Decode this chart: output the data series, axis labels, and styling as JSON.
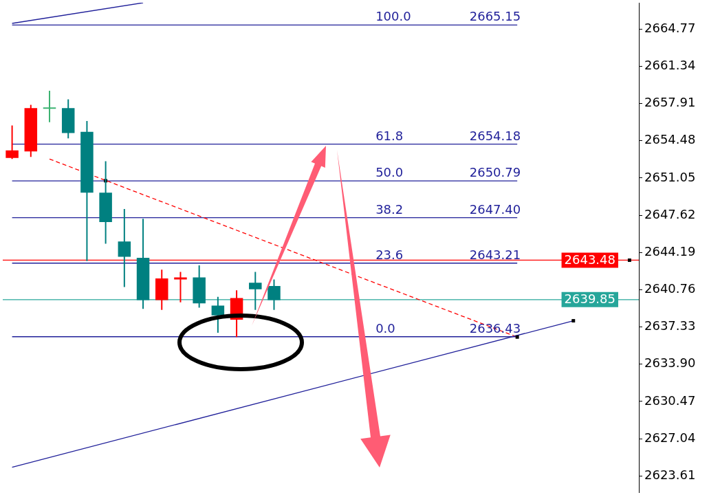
{
  "chart_data": {
    "type": "candlestick",
    "categories": [
      null,
      null,
      null,
      null,
      null,
      null,
      null,
      null,
      null,
      null,
      null,
      null,
      null,
      null,
      null,
      null,
      null,
      null,
      null,
      null,
      null,
      null,
      null,
      null,
      null,
      null,
      null,
      null,
      null,
      null,
      null,
      null,
      null,
      null
    ],
    "ohlc": [
      [
        2652.9,
        2655.9,
        2652.8,
        2653.6
      ],
      [
        2653.5,
        2657.8,
        2653.0,
        2657.5
      ],
      [
        2657.5,
        2659.1,
        2656.2,
        2657.5
      ],
      [
        2657.5,
        2658.3,
        2654.7,
        2655.2
      ],
      [
        2655.3,
        2656.3,
        2643.4,
        2649.7
      ],
      [
        2649.7,
        2652.6,
        2645.0,
        2647.0
      ],
      [
        2645.2,
        2648.2,
        2641.0,
        2643.8
      ],
      [
        2643.7,
        2647.3,
        2639.0,
        2639.8
      ],
      [
        2639.8,
        2642.6,
        2638.9,
        2641.8
      ],
      [
        2641.7,
        2642.4,
        2639.6,
        2641.9
      ],
      [
        2641.9,
        2643.0,
        2639.1,
        2639.5
      ],
      [
        2639.3,
        2640.1,
        2636.8,
        2638.4
      ],
      [
        2638.0,
        2640.7,
        2636.4,
        2640.0
      ],
      [
        2641.4,
        2642.4,
        2638.9,
        2640.8
      ],
      [
        2641.1,
        2641.7,
        2638.9,
        2639.8
      ],
      null,
      null,
      null,
      null,
      null,
      null,
      null,
      null,
      null,
      null,
      null,
      null,
      null,
      null,
      null,
      null,
      null,
      null,
      null
    ],
    "colors": [
      "#ff0000",
      "#ff0000",
      "#3cb371",
      "#008080",
      "#008080",
      "#008080",
      "#008080",
      "#008080",
      "#ff0000",
      "#ff0000",
      "#008080",
      "#008080",
      "#ff0000",
      "#008080",
      "#008080",
      null,
      null,
      null,
      null,
      null,
      null,
      null,
      null,
      null,
      null,
      null,
      null,
      null,
      null,
      null,
      null,
      null,
      null,
      null
    ],
    "ylim": [
      2622.1,
      2667.2
    ],
    "yticks": [
      2623.61,
      2627.04,
      2630.47,
      {
        "value": 2633.9,
        "label": "2633.90"
      },
      2637.33,
      2640.76,
      2644.19,
      2647.62,
      2651.05,
      2654.48,
      2657.91,
      2661.34,
      2664.77
    ],
    "tick_labels": "y",
    "series": [
      {
        "type": "line",
        "color": "#1f1f99",
        "values": [
          2665.3,
          null,
          null,
          null,
          null,
          null,
          null,
          2667.2,
          null,
          null,
          null,
          null,
          null,
          null,
          null,
          null,
          null,
          null,
          null,
          null,
          null,
          null,
          null,
          null,
          null,
          null,
          null,
          null,
          null,
          null,
          null,
          null,
          null,
          null
        ]
      },
      {
        "type": "line",
        "color": "#1f1f99",
        "values": [
          2624.4,
          null,
          null,
          null,
          null,
          null,
          null,
          null,
          null,
          null,
          null,
          null,
          null,
          null,
          null,
          null,
          null,
          null,
          null,
          null,
          null,
          null,
          null,
          null,
          null,
          null,
          null,
          null,
          null,
          null,
          2637.9,
          null,
          null,
          null
        ]
      },
      {
        "type": "line",
        "color": "#ff0000",
        "line_style": "dashed",
        "values": [
          null,
          null,
          2652.8,
          null,
          null,
          null,
          null,
          null,
          null,
          null,
          null,
          null,
          null,
          null,
          null,
          null,
          null,
          null,
          null,
          null,
          null,
          null,
          null,
          null,
          null,
          null,
          null,
          2636.4,
          null,
          null,
          null,
          null,
          null,
          null
        ]
      },
      {
        "type": "line",
        "name": "100.0",
        "color": "#1f1f99",
        "values": [
          2665.15,
          null,
          null,
          null,
          null,
          null,
          null,
          null,
          null,
          null,
          null,
          null,
          null,
          null,
          null,
          null,
          null,
          null,
          null,
          null,
          null,
          null,
          null,
          null,
          null,
          null,
          null,
          2665.15,
          null,
          null,
          null,
          null,
          null,
          null
        ],
        "value_labels": [
          null,
          null,
          null,
          null,
          null,
          null,
          null,
          null,
          null,
          null,
          null,
          null,
          null,
          null,
          null,
          null,
          null,
          null,
          null,
          null,
          null,
          null,
          null,
          null,
          null,
          null,
          null,
          "2665.15",
          null,
          null,
          null,
          null,
          null,
          null
        ]
      },
      {
        "type": "line",
        "name": "61.8",
        "color": "#1f1f99",
        "values": [
          2654.18,
          null,
          null,
          null,
          null,
          null,
          null,
          null,
          null,
          null,
          null,
          null,
          null,
          null,
          null,
          null,
          null,
          null,
          null,
          null,
          null,
          null,
          null,
          null,
          null,
          null,
          null,
          2654.18,
          null,
          null,
          null,
          null,
          null,
          null
        ],
        "value_labels": [
          null,
          null,
          null,
          null,
          null,
          null,
          null,
          null,
          null,
          null,
          null,
          null,
          null,
          null,
          null,
          null,
          null,
          null,
          null,
          null,
          null,
          null,
          null,
          null,
          null,
          null,
          null,
          "2654.18",
          null,
          null,
          null,
          null,
          null,
          null
        ]
      },
      {
        "type": "line",
        "name": "50.0",
        "color": "#1f1f99",
        "values": [
          2650.79,
          null,
          null,
          null,
          null,
          null,
          null,
          null,
          null,
          null,
          null,
          null,
          null,
          null,
          null,
          null,
          null,
          null,
          null,
          null,
          null,
          null,
          null,
          null,
          null,
          null,
          null,
          2650.79,
          null,
          null,
          null,
          null,
          null,
          null
        ],
        "value_labels": [
          null,
          null,
          null,
          null,
          null,
          null,
          null,
          null,
          null,
          null,
          null,
          null,
          null,
          null,
          null,
          null,
          null,
          null,
          null,
          null,
          null,
          null,
          null,
          null,
          null,
          null,
          null,
          "2650.79",
          null,
          null,
          null,
          null,
          null,
          null
        ]
      },
      {
        "type": "line",
        "name": "38.2",
        "color": "#1f1f99",
        "values": [
          2647.4,
          null,
          null,
          null,
          null,
          null,
          null,
          null,
          null,
          null,
          null,
          null,
          null,
          null,
          null,
          null,
          null,
          null,
          null,
          null,
          null,
          null,
          null,
          null,
          null,
          null,
          null,
          2647.4,
          null,
          null,
          null,
          null,
          null,
          null
        ],
        "value_labels": [
          null,
          null,
          null,
          null,
          null,
          null,
          null,
          null,
          null,
          null,
          null,
          null,
          null,
          null,
          null,
          null,
          null,
          null,
          null,
          null,
          null,
          null,
          null,
          null,
          null,
          null,
          null,
          "2647.40",
          null,
          null,
          null,
          null,
          null,
          null
        ]
      },
      {
        "type": "line",
        "name": "23.6",
        "color": "#1f1f99",
        "values": [
          2643.21,
          null,
          null,
          null,
          null,
          null,
          null,
          null,
          null,
          null,
          null,
          null,
          null,
          null,
          null,
          null,
          null,
          null,
          null,
          null,
          null,
          null,
          null,
          null,
          null,
          null,
          null,
          2643.21,
          null,
          null,
          null,
          null,
          null,
          null
        ],
        "value_labels": [
          null,
          null,
          null,
          null,
          null,
          null,
          null,
          null,
          null,
          null,
          null,
          null,
          null,
          null,
          null,
          null,
          null,
          null,
          null,
          null,
          null,
          null,
          null,
          null,
          null,
          null,
          null,
          "2643.21",
          null,
          null,
          null,
          null,
          null,
          null
        ]
      },
      {
        "type": "line",
        "name": "0.0",
        "color": "#1f1f99",
        "values": [
          2636.43,
          null,
          null,
          null,
          null,
          null,
          null,
          null,
          null,
          null,
          null,
          null,
          null,
          null,
          null,
          null,
          null,
          null,
          null,
          null,
          null,
          null,
          null,
          null,
          null,
          null,
          null,
          2636.43,
          null,
          null,
          null,
          null,
          null,
          null
        ],
        "value_labels": [
          null,
          null,
          null,
          null,
          null,
          null,
          null,
          null,
          null,
          null,
          null,
          null,
          null,
          null,
          null,
          null,
          null,
          null,
          null,
          null,
          null,
          null,
          null,
          null,
          null,
          null,
          null,
          "2636.43",
          null,
          null,
          null,
          null,
          null,
          null
        ]
      },
      {
        "type": "scatter",
        "color": "#000000",
        "marker": "square",
        "values": [
          null,
          null,
          null,
          null,
          null,
          2650.8,
          null,
          null,
          null,
          null,
          null,
          null,
          null,
          null,
          null,
          null,
          null,
          null,
          null,
          null,
          null,
          null,
          null,
          null,
          null,
          null,
          null,
          2636.4,
          null,
          null,
          2637.9,
          null,
          null,
          2643.48
        ]
      }
    ],
    "ref_lines": [
      {
        "axis": "y",
        "value": 2643.48,
        "label": "2643.48",
        "color": "#ff0000"
      },
      {
        "axis": "y",
        "value": 2639.85,
        "label": "2639.85",
        "color": "#26a69a"
      }
    ]
  }
}
